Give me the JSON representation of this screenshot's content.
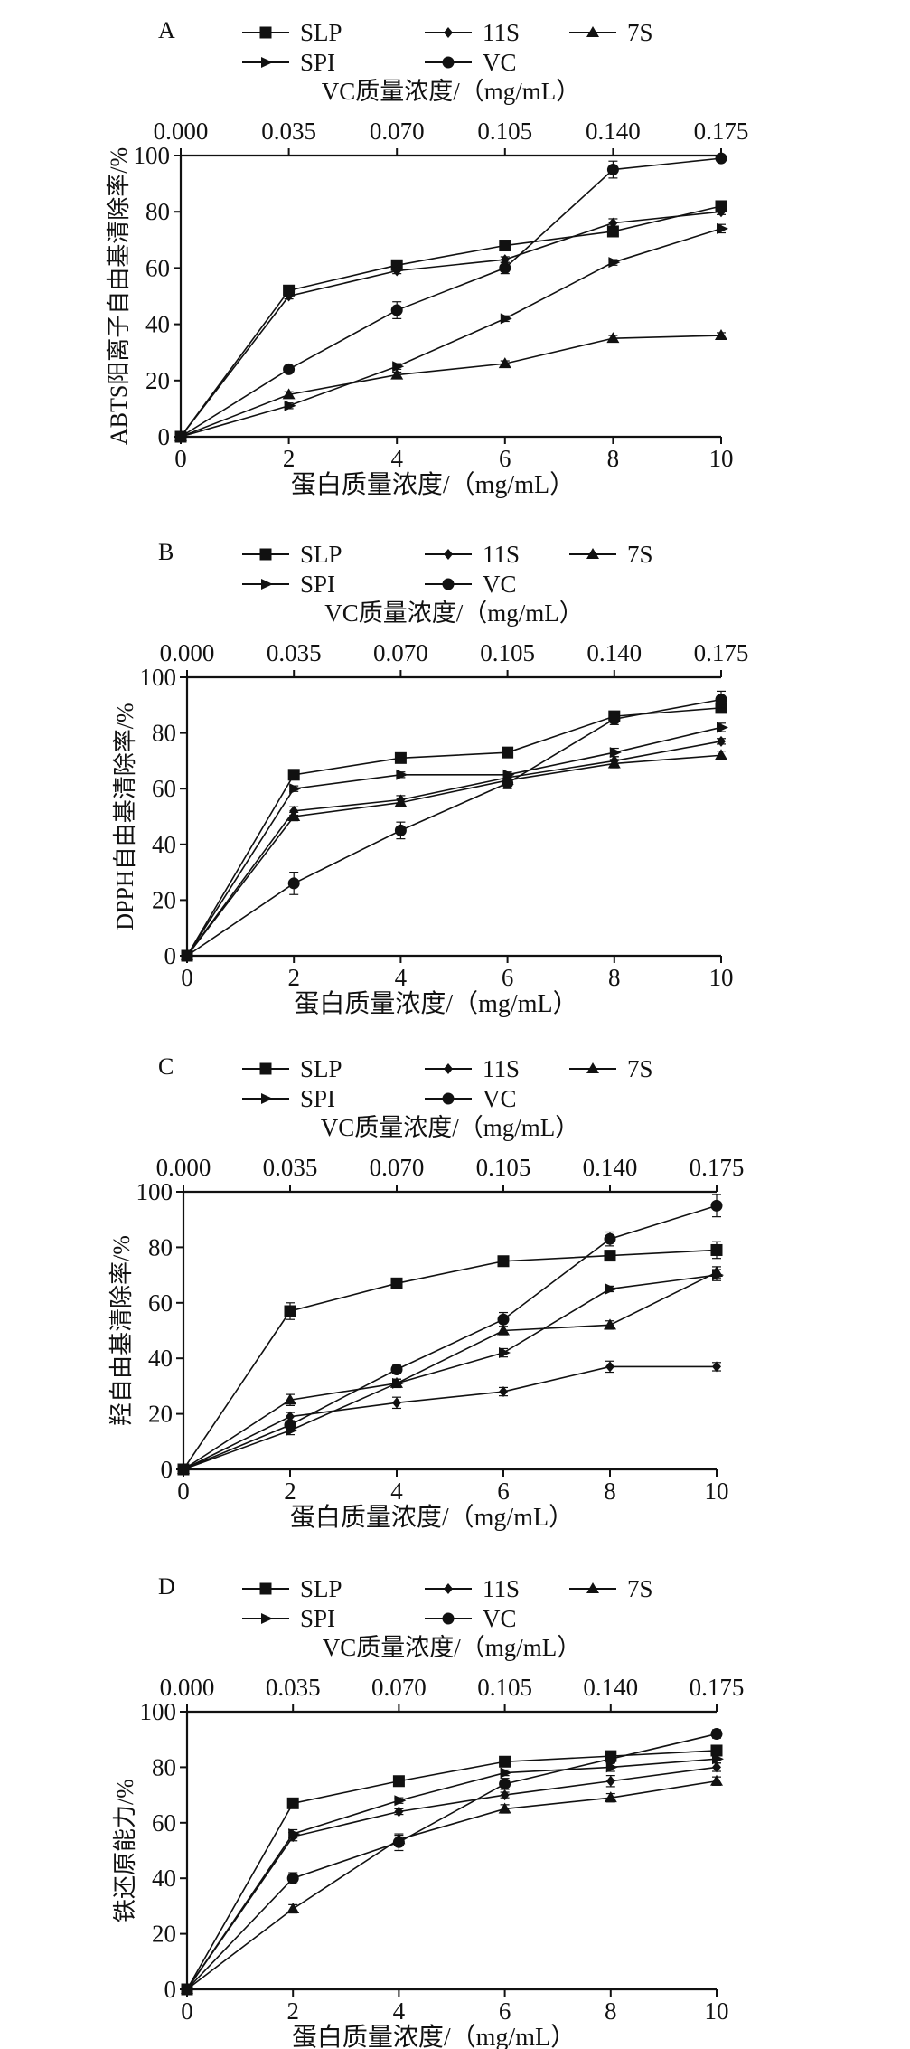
{
  "page": {
    "background": "#ffffff",
    "ink": "#111111"
  },
  "legend_items": [
    {
      "key": "SLP",
      "label": "SLP",
      "marker": "square-marker"
    },
    {
      "key": "11S",
      "label": "11S",
      "marker": "diamond-marker"
    },
    {
      "key": "7S",
      "label": "7S",
      "marker": "triangle-marker"
    },
    {
      "key": "SPI",
      "label": "SPI",
      "marker": "right-arrow-marker"
    },
    {
      "key": "VC",
      "label": "VC",
      "marker": "circle-marker"
    }
  ],
  "chart_data": [
    {
      "type": "line",
      "panel_label": "A",
      "xlabel": "蛋白质量浓度/（mg/mL）",
      "x2label": "VC质量浓度/（mg/mL）",
      "ylabel": "ABTS阳离子自由基清除率/%",
      "x": [
        0,
        2,
        4,
        6,
        8,
        10
      ],
      "x_ticks": [
        "0",
        "2",
        "4",
        "6",
        "8",
        "10"
      ],
      "x2_ticks": [
        "0.000",
        "0.035",
        "0.070",
        "0.105",
        "0.140",
        "0.175"
      ],
      "y_ticks": [
        "0",
        "20",
        "40",
        "60",
        "80",
        "100"
      ],
      "xlim": [
        0,
        10
      ],
      "ylim": [
        0,
        100
      ],
      "legend_position": "top",
      "series": [
        {
          "name": "SLP",
          "marker": "square",
          "values": [
            0,
            52,
            61,
            68,
            73,
            82
          ],
          "errors": [
            0,
            1.5,
            1.5,
            1.5,
            1.5,
            1.5
          ]
        },
        {
          "name": "11S",
          "marker": "diamond",
          "values": [
            0,
            50,
            59,
            63,
            76,
            80
          ],
          "errors": [
            0,
            1,
            1,
            1,
            1.5,
            1
          ]
        },
        {
          "name": "7S",
          "marker": "triangle",
          "values": [
            0,
            15,
            22,
            26,
            35,
            36
          ],
          "errors": [
            0,
            1,
            1,
            1,
            1,
            1
          ]
        },
        {
          "name": "SPI",
          "marker": "right",
          "values": [
            0,
            11,
            25,
            42,
            62,
            74
          ],
          "errors": [
            0,
            1,
            1,
            1,
            1,
            1.5
          ]
        },
        {
          "name": "VC",
          "marker": "circle",
          "values": [
            0,
            24,
            45,
            60,
            95,
            99
          ],
          "errors": [
            0,
            1,
            3,
            2,
            3,
            1
          ]
        }
      ]
    },
    {
      "type": "line",
      "panel_label": "B",
      "xlabel": "蛋白质量浓度/（mg/mL）",
      "x2label": "VC质量浓度/（mg/mL）",
      "ylabel": "DPPH自由基清除率/%",
      "x": [
        0,
        2,
        4,
        6,
        8,
        10
      ],
      "x_ticks": [
        "0",
        "2",
        "4",
        "6",
        "8",
        "10"
      ],
      "x2_ticks": [
        "0.000",
        "0.035",
        "0.070",
        "0.105",
        "0.140",
        "0.175"
      ],
      "y_ticks": [
        "0",
        "20",
        "40",
        "60",
        "80",
        "100"
      ],
      "xlim": [
        0,
        10
      ],
      "ylim": [
        0,
        100
      ],
      "legend_position": "top",
      "series": [
        {
          "name": "SLP",
          "marker": "square",
          "values": [
            0,
            65,
            71,
            73,
            86,
            89
          ],
          "errors": [
            0,
            1.5,
            1,
            1,
            1.5,
            1.5
          ]
        },
        {
          "name": "11S",
          "marker": "diamond",
          "values": [
            0,
            52,
            56,
            64,
            70,
            77
          ],
          "errors": [
            0,
            1.5,
            1.5,
            1.5,
            1.5,
            1
          ]
        },
        {
          "name": "7S",
          "marker": "triangle",
          "values": [
            0,
            50,
            55,
            63,
            69,
            72
          ],
          "errors": [
            0,
            1.5,
            1.5,
            1.5,
            1.5,
            1.5
          ]
        },
        {
          "name": "SPI",
          "marker": "right",
          "values": [
            0,
            60,
            65,
            65,
            73,
            82
          ],
          "errors": [
            0,
            1,
            1,
            1,
            1.5,
            1.5
          ]
        },
        {
          "name": "VC",
          "marker": "circle",
          "values": [
            0,
            26,
            45,
            62,
            85,
            92
          ],
          "errors": [
            0,
            4,
            3,
            2,
            2,
            3
          ]
        }
      ]
    },
    {
      "type": "line",
      "panel_label": "C",
      "xlabel": "蛋白质量浓度/（mg/mL）",
      "x2label": "VC质量浓度/（mg/mL）",
      "ylabel": "羟自由基清除率/%",
      "x": [
        0,
        2,
        4,
        6,
        8,
        10
      ],
      "x_ticks": [
        "0",
        "2",
        "4",
        "6",
        "8",
        "10"
      ],
      "x2_ticks": [
        "0.000",
        "0.035",
        "0.070",
        "0.105",
        "0.140",
        "0.175"
      ],
      "y_ticks": [
        "0",
        "20",
        "40",
        "60",
        "80",
        "100"
      ],
      "xlim": [
        0,
        10
      ],
      "ylim": [
        0,
        100
      ],
      "legend_position": "top",
      "series": [
        {
          "name": "SLP",
          "marker": "square",
          "values": [
            0,
            57,
            67,
            75,
            77,
            79
          ],
          "errors": [
            0,
            3,
            1,
            1,
            1.5,
            3
          ]
        },
        {
          "name": "11S",
          "marker": "diamond",
          "values": [
            0,
            19,
            24,
            28,
            37,
            37
          ],
          "errors": [
            0,
            1.5,
            2,
            1.5,
            2,
            1.5
          ]
        },
        {
          "name": "7S",
          "marker": "triangle",
          "values": [
            0,
            25,
            31,
            50,
            52,
            71
          ],
          "errors": [
            0,
            2,
            1.5,
            1.5,
            1.5,
            2
          ]
        },
        {
          "name": "SPI",
          "marker": "right",
          "values": [
            0,
            14,
            31,
            42,
            65,
            70
          ],
          "errors": [
            0,
            1.5,
            1.5,
            1.5,
            1,
            2
          ]
        },
        {
          "name": "VC",
          "marker": "circle",
          "values": [
            0,
            16,
            36,
            54,
            83,
            95
          ],
          "errors": [
            0,
            1.5,
            1.5,
            2.5,
            2.5,
            4
          ]
        }
      ]
    },
    {
      "type": "line",
      "panel_label": "D",
      "xlabel": "蛋白质量浓度/（mg/mL）",
      "x2label": "VC质量浓度/（mg/mL）",
      "ylabel": "铁还原能力/%",
      "x": [
        0,
        2,
        4,
        6,
        8,
        10
      ],
      "x_ticks": [
        "0",
        "2",
        "4",
        "6",
        "8",
        "10"
      ],
      "x2_ticks": [
        "0.000",
        "0.035",
        "0.070",
        "0.105",
        "0.140",
        "0.175"
      ],
      "y_ticks": [
        "0",
        "20",
        "40",
        "60",
        "80",
        "100"
      ],
      "xlim": [
        0,
        10
      ],
      "ylim": [
        0,
        100
      ],
      "legend_position": "top",
      "series": [
        {
          "name": "SLP",
          "marker": "square",
          "values": [
            0,
            67,
            75,
            82,
            84,
            86
          ],
          "errors": [
            0,
            1,
            1,
            1,
            1.5,
            1.5
          ]
        },
        {
          "name": "11S",
          "marker": "diamond",
          "values": [
            0,
            55,
            64,
            70,
            75,
            80
          ],
          "errors": [
            0,
            1.5,
            1,
            1,
            2,
            1.5
          ]
        },
        {
          "name": "7S",
          "marker": "triangle",
          "values": [
            0,
            29,
            54,
            65,
            69,
            75
          ],
          "errors": [
            0,
            1.5,
            1.5,
            1.5,
            1.5,
            1.5
          ]
        },
        {
          "name": "SPI",
          "marker": "right",
          "values": [
            0,
            56,
            68,
            78,
            80,
            83
          ],
          "errors": [
            0,
            1.5,
            1,
            1,
            1.5,
            1.5
          ]
        },
        {
          "name": "VC",
          "marker": "circle",
          "values": [
            0,
            40,
            53,
            74,
            83,
            92
          ],
          "errors": [
            0,
            2,
            3,
            2,
            1.5,
            1.5
          ]
        }
      ]
    }
  ]
}
